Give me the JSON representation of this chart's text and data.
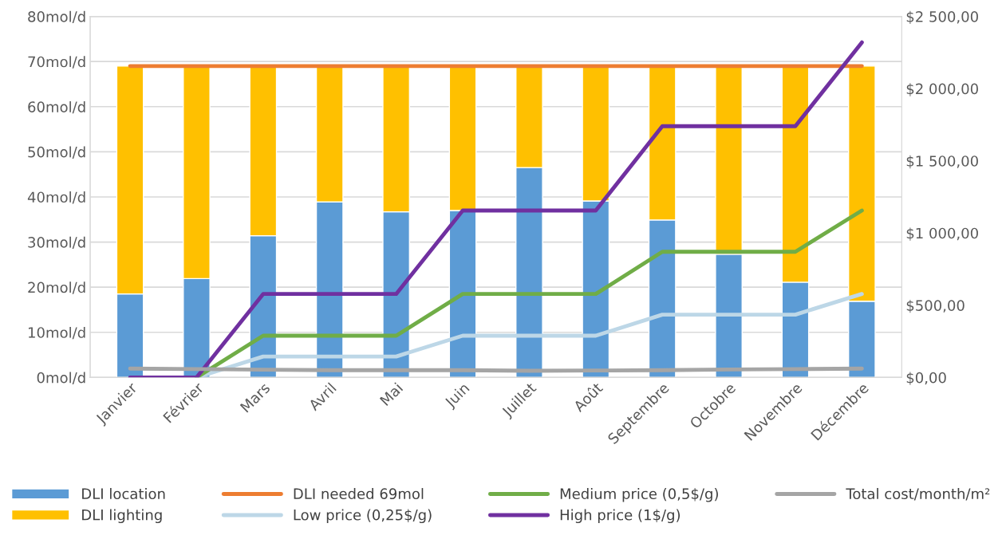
{
  "chart_data": {
    "type": "bar",
    "stacked": true,
    "categories": [
      "Janvier",
      "Février",
      "Mars",
      "Avril",
      "Mai",
      "Juin",
      "Juillet",
      "Août",
      "Septembre",
      "Octobre",
      "Novembre",
      "Décembre"
    ],
    "series": [
      {
        "name": "DLI location",
        "color": "#5b9bd5",
        "values": [
          18.5,
          21.9,
          31.4,
          38.9,
          36.7,
          37,
          46.5,
          39.1,
          34.9,
          27.3,
          21.1,
          16.9
        ]
      },
      {
        "name": "DLI lighting",
        "color": "#ffc000",
        "values": [
          50.5,
          47.1,
          37.6,
          30.1,
          32.3,
          32,
          22.5,
          29.9,
          34.1,
          41.7,
          47.9,
          52.1
        ]
      },
      {
        "name": "DLI needed 69mol",
        "type": "line",
        "color": "#ed7d31",
        "values": [
          69,
          69,
          69,
          69,
          69,
          69,
          69,
          69,
          69,
          69,
          69,
          69
        ]
      },
      {
        "name": "Low price (0,25$/g)",
        "type": "line",
        "axis": "y2",
        "color": "#bdd7e7",
        "values": [
          null,
          0,
          145,
          145,
          145,
          289,
          289,
          289,
          435,
          435,
          435,
          578
        ]
      },
      {
        "name": "Medium price (0,5$/g)",
        "type": "line",
        "axis": "y2",
        "color": "#70ad47",
        "values": [
          null,
          0,
          289,
          289,
          289,
          578,
          578,
          578,
          870,
          870,
          870,
          1156
        ]
      },
      {
        "name": "High price (1$/g)",
        "type": "line",
        "axis": "y2",
        "color": "#7030a0",
        "values": [
          0,
          0,
          578,
          578,
          578,
          1156,
          1156,
          1156,
          1740,
          1740,
          1740,
          2320
        ]
      },
      {
        "name": "Total cost/month/m²",
        "type": "line",
        "axis": "y2",
        "color": "#a5a5a5",
        "values": [
          61,
          58,
          54,
          50,
          50,
          50,
          46,
          48,
          50,
          55,
          58,
          61
        ]
      }
    ],
    "ylim": [
      0,
      80
    ],
    "yticks": [
      {
        "value": 0,
        "label": "0mol/d"
      },
      {
        "value": 10,
        "label": "10mol/d"
      },
      {
        "value": 20,
        "label": "20mol/d"
      },
      {
        "value": 30,
        "label": "30mol/d"
      },
      {
        "value": 40,
        "label": "40mol/d"
      },
      {
        "value": 50,
        "label": "50mol/d"
      },
      {
        "value": 60,
        "label": "60mol/d"
      },
      {
        "value": 70,
        "label": "70mol/d"
      },
      {
        "value": 80,
        "label": "80mol/d"
      }
    ],
    "y2lim": [
      0,
      2500
    ],
    "y2ticks": [
      {
        "value": 0,
        "label": "$0,00"
      },
      {
        "value": 500,
        "label": "$500,00"
      },
      {
        "value": 1000,
        "label": "$1 000,00"
      },
      {
        "value": 1500,
        "label": "$1 500,00"
      },
      {
        "value": 2000,
        "label": "$2 000,00"
      },
      {
        "value": 2500,
        "label": "$2 500,00"
      }
    ],
    "grid": "y",
    "legend": "bottom",
    "marker": "none",
    "line_style": "solid"
  }
}
